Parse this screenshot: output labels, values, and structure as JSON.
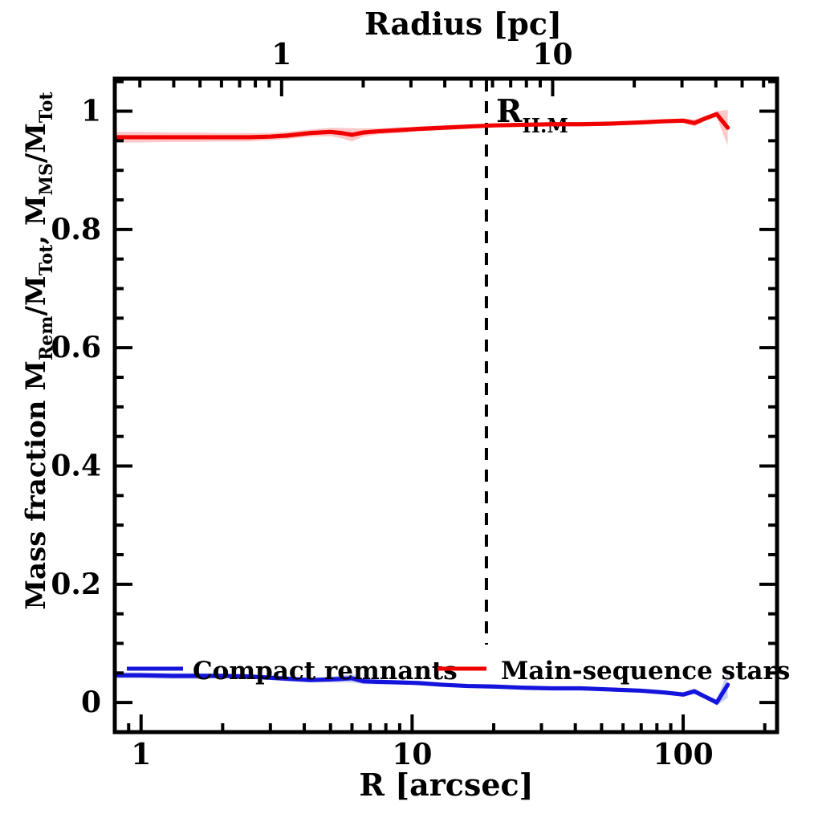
{
  "figure": {
    "background": "#ffffff"
  },
  "chart_data": {
    "type": "line",
    "x_axis": {
      "title": "R [arcsec]",
      "scale": "log",
      "range": [
        0.8,
        222
      ],
      "major_ticks": [
        1,
        10,
        100
      ],
      "tick_labels": [
        "1",
        "10",
        "100"
      ]
    },
    "top_axis": {
      "title": "Radius [pc]",
      "scale": "log",
      "arcsec_per_pc": 3.3,
      "major_ticks": [
        1,
        10
      ],
      "tick_labels": [
        "1",
        "10"
      ]
    },
    "y_axis": {
      "title_parts": [
        {
          "text": "Mass fraction   M"
        },
        {
          "sub": "Rem"
        },
        {
          "text": "/M"
        },
        {
          "sub": "Tot"
        },
        {
          "text": ",  M"
        },
        {
          "sub": "MS"
        },
        {
          "text": "/M"
        },
        {
          "sub": "Tot"
        }
      ],
      "range": [
        -0.05,
        1.055
      ],
      "major_ticks": [
        0,
        0.2,
        0.4,
        0.6,
        0.8,
        1
      ],
      "tick_labels": [
        "0",
        "0.2",
        "0.4",
        "0.6",
        "0.8",
        "1"
      ],
      "minor_step": 0.05
    },
    "annotation": {
      "label_parts": [
        {
          "text": "R"
        },
        {
          "sub": "H.M"
        }
      ],
      "r_arcsec": 18.8,
      "style": "dashed-vertical"
    },
    "r_arcsec": [
      0.8,
      1.0,
      1.3,
      1.6,
      2.0,
      2.5,
      3.0,
      3.5,
      4.2,
      5.0,
      5.5,
      6.0,
      6.6,
      7.5,
      9.0,
      10.5,
      13,
      16,
      20,
      26,
      33,
      42,
      54,
      70,
      85,
      100,
      110,
      121,
      133,
      146
    ],
    "series": [
      {
        "name": "Main-sequence stars",
        "color": "#f10000",
        "band_color": "#ffbdbd",
        "values": [
          0.956,
          0.956,
          0.956,
          0.956,
          0.956,
          0.956,
          0.957,
          0.959,
          0.963,
          0.965,
          0.963,
          0.96,
          0.964,
          0.966,
          0.968,
          0.97,
          0.972,
          0.974,
          0.976,
          0.977,
          0.978,
          0.978,
          0.979,
          0.981,
          0.983,
          0.984,
          0.98,
          0.988,
          0.995,
          0.972
        ],
        "band_halfwidth": [
          0.009,
          0.009,
          0.008,
          0.008,
          0.007,
          0.007,
          0.006,
          0.006,
          0.006,
          0.007,
          0.009,
          0.011,
          0.007,
          0.005,
          0.005,
          0.004,
          0.004,
          0.004,
          0.003,
          0.003,
          0.003,
          0.003,
          0.003,
          0.003,
          0.003,
          0.004,
          0.006,
          0.004,
          0.005,
          0.03
        ]
      },
      {
        "name": "Compact remnants",
        "color": "#1414dd",
        "band_color": "#bfc6ee",
        "values": [
          0.046,
          0.046,
          0.045,
          0.045,
          0.045,
          0.044,
          0.042,
          0.04,
          0.038,
          0.039,
          0.04,
          0.041,
          0.036,
          0.035,
          0.034,
          0.033,
          0.03,
          0.028,
          0.027,
          0.025,
          0.024,
          0.024,
          0.022,
          0.02,
          0.017,
          0.0135,
          0.019,
          0.0095,
          0.0,
          0.03
        ],
        "band_halfwidth": [
          0.005,
          0.005,
          0.005,
          0.005,
          0.004,
          0.004,
          0.004,
          0.004,
          0.004,
          0.005,
          0.006,
          0.007,
          0.005,
          0.004,
          0.003,
          0.003,
          0.003,
          0.003,
          0.003,
          0.003,
          0.003,
          0.003,
          0.003,
          0.003,
          0.003,
          0.004,
          0.005,
          0.004,
          0.005,
          0.022
        ]
      }
    ],
    "legend": {
      "position": "bottom-inside",
      "items": [
        {
          "label": "Compact remnants",
          "color": "#1414dd"
        },
        {
          "label": "Main-sequence stars",
          "color": "#f10000"
        }
      ]
    }
  }
}
